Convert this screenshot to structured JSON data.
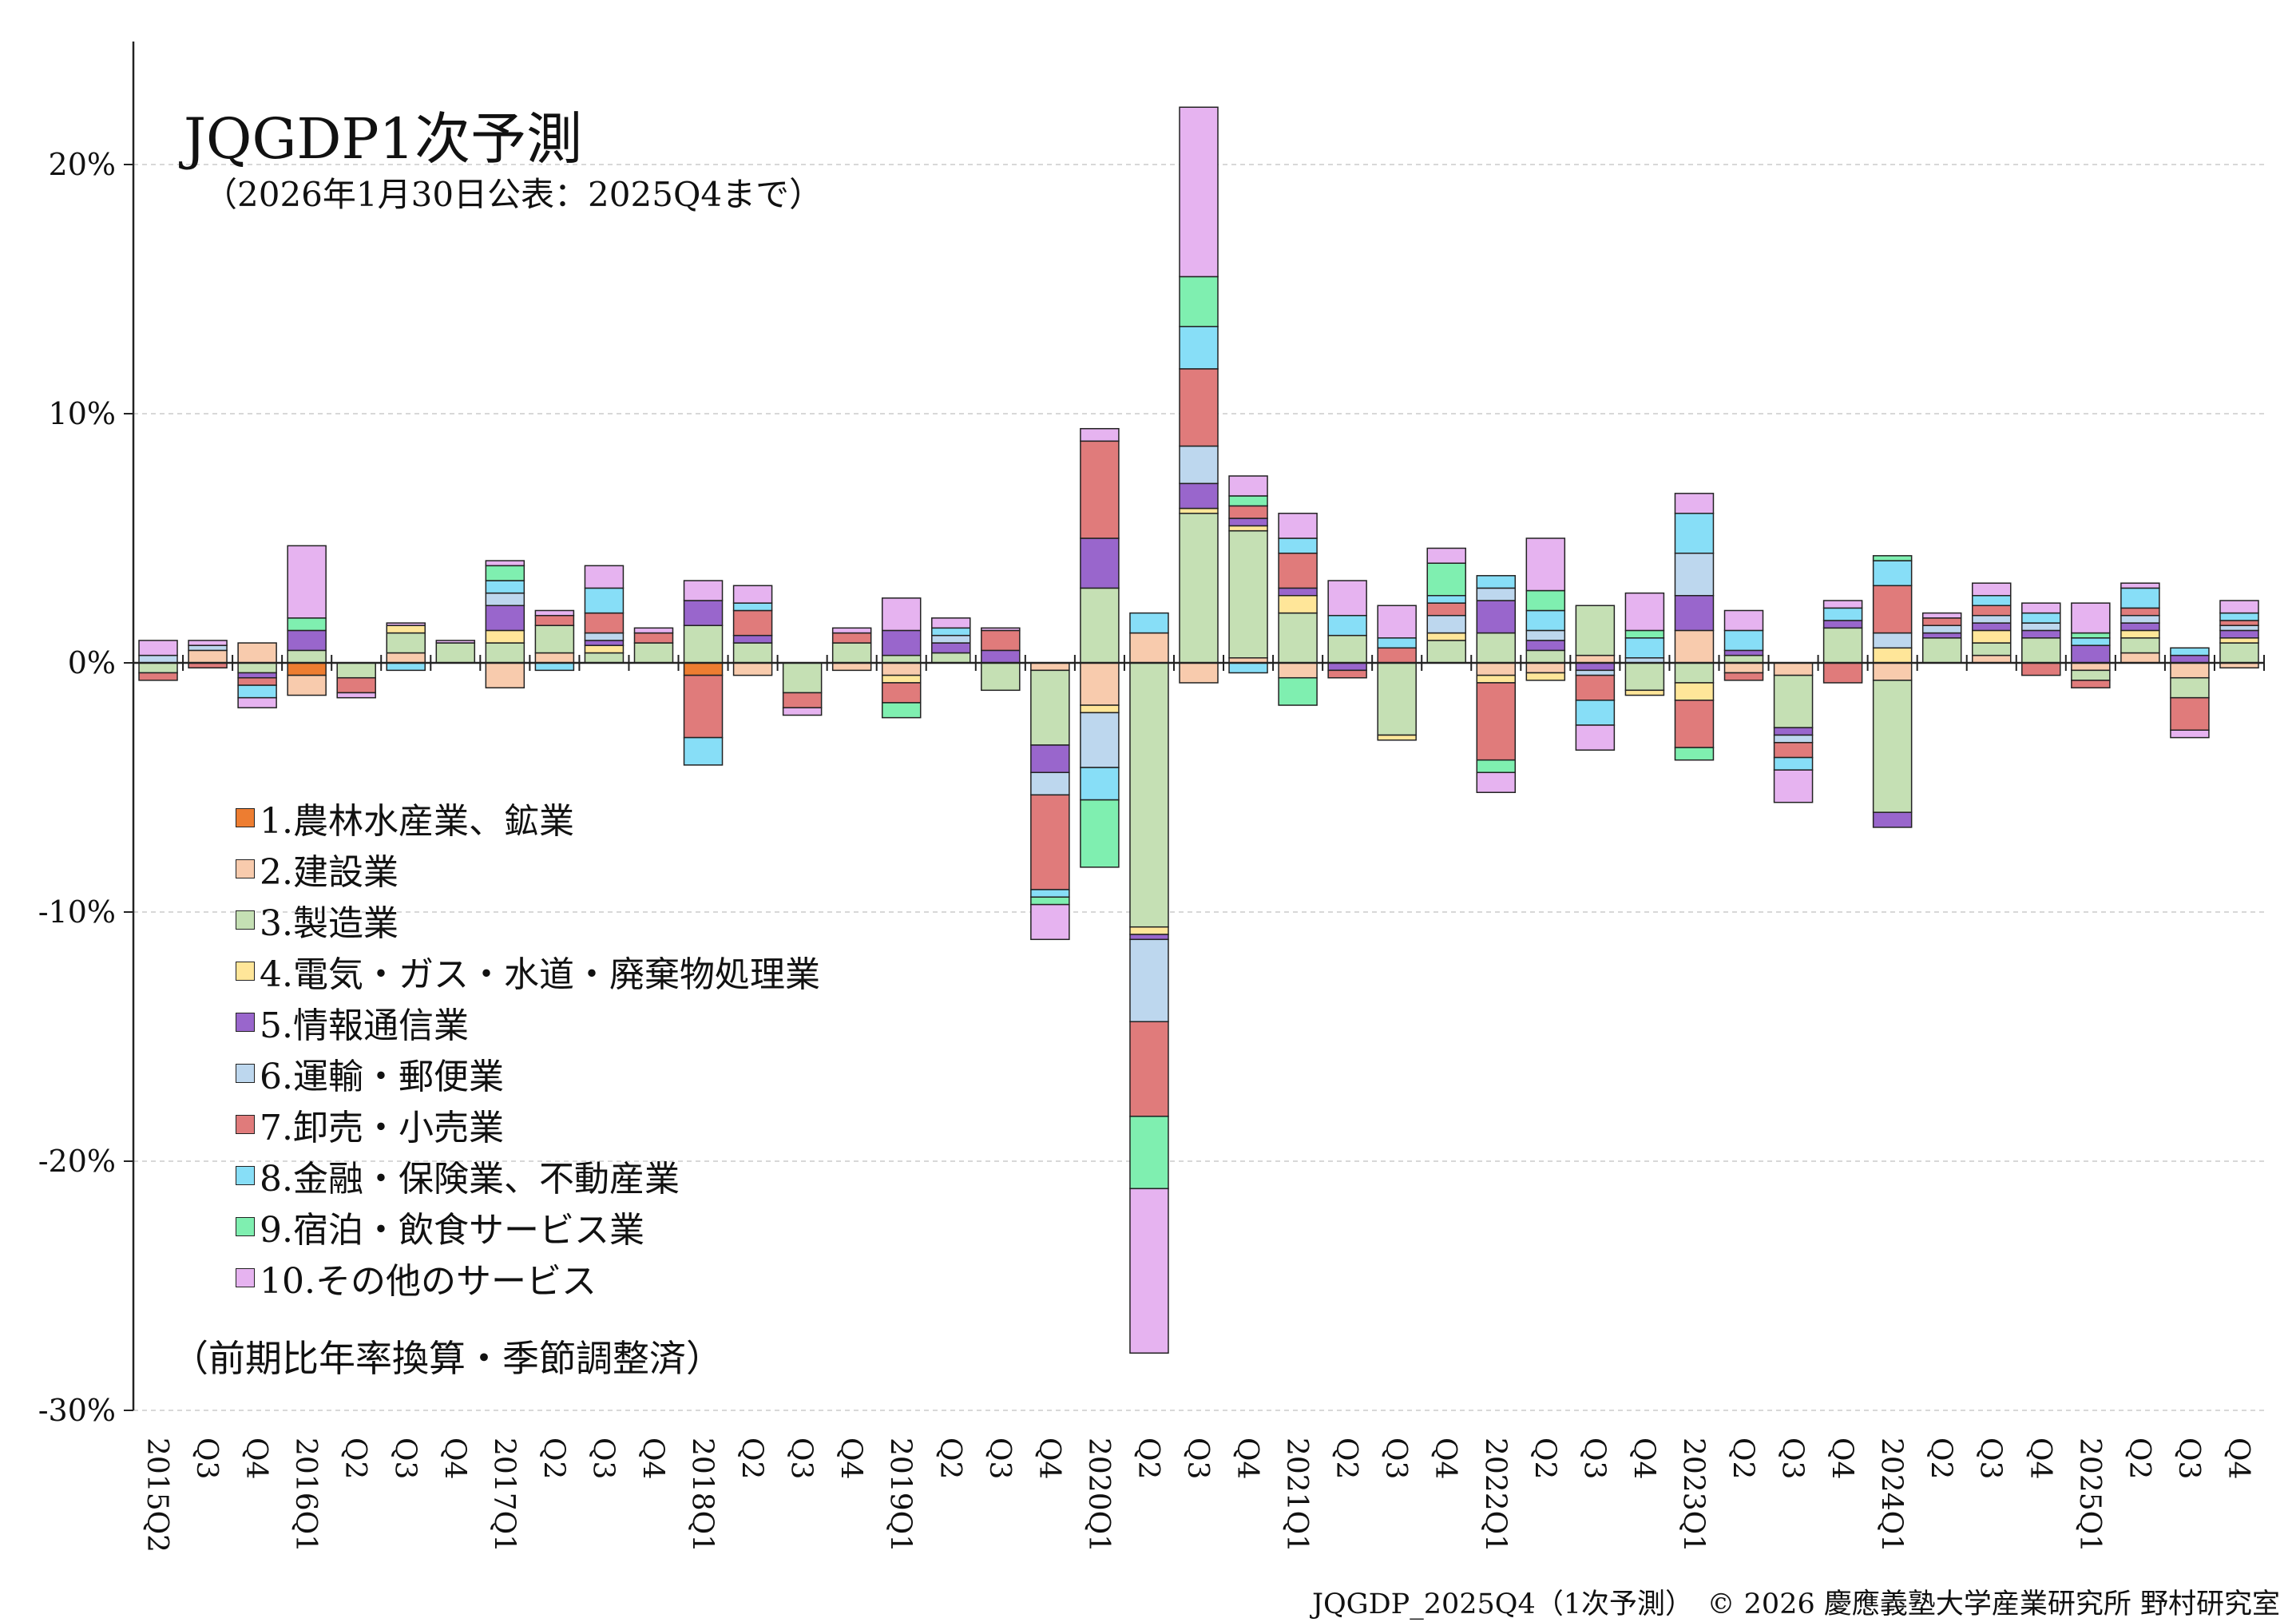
{
  "title": "JQGDP1次予測",
  "subtitle": "（2026年1月30日公表：2025Q4まで）",
  "note": "（前期比年率換算・季節調整済）",
  "footer": "JQGDP_2025Q4（1次予測）　© 2026 慶應義塾大学産業研究所 野村研究室",
  "chart_data": {
    "type": "bar",
    "stacked": true,
    "ylim": [
      -30,
      25
    ],
    "yticks": [
      20,
      10,
      0,
      -10,
      -20,
      -30
    ],
    "ytick_labels": [
      "20%",
      "10%",
      "0%",
      "-10%",
      "-20%",
      "-30%"
    ],
    "grid": "horizontal-dashed",
    "legend_position": "left-middle",
    "categories": [
      "2015Q2",
      "Q3",
      "Q4",
      "2016Q1",
      "Q2",
      "Q3",
      "Q4",
      "2017Q1",
      "Q2",
      "Q3",
      "Q4",
      "2018Q1",
      "Q2",
      "Q3",
      "Q4",
      "2019Q1",
      "Q2",
      "Q3",
      "Q4",
      "2020Q1",
      "Q2",
      "Q3",
      "Q4",
      "2021Q1",
      "Q2",
      "Q3",
      "Q4",
      "2022Q1",
      "Q2",
      "Q3",
      "Q4",
      "2023Q1",
      "Q2",
      "Q3",
      "Q4",
      "2024Q1",
      "Q2",
      "Q3",
      "Q4",
      "2025Q1",
      "Q2",
      "Q3",
      "Q4"
    ],
    "series": [
      {
        "name": "1.農林水産業、鉱業",
        "color": "#ED7D31",
        "values": [
          0,
          0,
          0,
          -0.5,
          0,
          0,
          0,
          0,
          0,
          0,
          0,
          -0.5,
          0,
          0,
          0,
          0,
          0,
          0,
          0,
          0,
          0,
          0,
          0,
          0,
          0,
          0,
          0,
          0,
          0,
          0,
          0,
          0,
          0,
          0,
          0,
          0,
          0,
          0,
          0,
          0,
          0,
          0,
          0
        ]
      },
      {
        "name": "2.建設業",
        "color": "#F8CBAD",
        "values": [
          0,
          0.5,
          0.8,
          -0.8,
          0,
          0.4,
          0,
          -1,
          0.4,
          0,
          0,
          0,
          -0.5,
          0,
          -0.3,
          -0.5,
          0,
          0,
          -0.3,
          -1.7,
          1.2,
          -0.8,
          0.2,
          -0.6,
          0,
          0,
          0,
          -0.5,
          -0.4,
          0.3,
          0,
          1.3,
          -0.4,
          -0.5,
          0,
          -0.7,
          0,
          0.3,
          0,
          -0.3,
          0.4,
          -0.6,
          -0.2
        ]
      },
      {
        "name": "3.製造業",
        "color": "#C5E0B4",
        "values": [
          -0.4,
          0,
          -0.4,
          0.5,
          -0.6,
          0.8,
          0.8,
          0.8,
          1.1,
          0.4,
          0.8,
          1.5,
          0.8,
          -1.2,
          0.8,
          0.3,
          0.4,
          -1.1,
          -3,
          3,
          -10.6,
          6,
          5.1,
          2,
          1.1,
          -2.9,
          0.9,
          1.2,
          0.5,
          2,
          -1.1,
          -0.8,
          0.3,
          -2.1,
          1.4,
          -5.3,
          1,
          0.5,
          1,
          -0.4,
          0.6,
          -0.8,
          0.8
        ]
      },
      {
        "name": "4.電気・ガス・水道・廃棄物処理業",
        "color": "#FFE699",
        "values": [
          0,
          0,
          0,
          0,
          0,
          0.3,
          0,
          0.5,
          0,
          0.3,
          0,
          0,
          0,
          0,
          0,
          -0.3,
          0,
          0,
          0,
          -0.3,
          -0.3,
          0.2,
          0.2,
          0.7,
          0,
          -0.2,
          0.3,
          -0.3,
          -0.3,
          0,
          -0.2,
          -0.7,
          0,
          0,
          0,
          0.6,
          0,
          0.5,
          0,
          0,
          0.3,
          0,
          0.2
        ]
      },
      {
        "name": "5.情報通信業",
        "color": "#9966CC",
        "values": [
          0,
          0,
          -0.2,
          0.8,
          0,
          0,
          0,
          1,
          0,
          0.2,
          0,
          1,
          0.3,
          0,
          0,
          1,
          0.4,
          0.5,
          -1.1,
          2,
          -0.2,
          1,
          0.3,
          0.3,
          -0.3,
          0,
          0,
          1.3,
          0.4,
          -0.3,
          0,
          1.4,
          0.2,
          -0.3,
          0.3,
          -0.6,
          0.2,
          0.3,
          0.3,
          0.7,
          0.3,
          0.3,
          0.3
        ]
      },
      {
        "name": "6.運輸・郵便業",
        "color": "#BDD7EE",
        "values": [
          0.3,
          0.2,
          0,
          0,
          0,
          0,
          0,
          0.5,
          0,
          0.3,
          0,
          0,
          0,
          0,
          0,
          0,
          0.3,
          0,
          -0.9,
          -2.2,
          -3.3,
          1.5,
          0,
          0,
          0,
          0,
          0.7,
          0.5,
          0.4,
          -0.2,
          0.2,
          1.7,
          0,
          -0.3,
          0,
          0.6,
          0.3,
          0.3,
          0.3,
          0,
          0.3,
          0,
          0.2
        ]
      },
      {
        "name": "7.卸売・小売業",
        "color": "#E07B7B",
        "values": [
          -0.3,
          -0.2,
          -0.3,
          0,
          -0.6,
          0,
          0,
          0,
          0.4,
          0.8,
          0.4,
          -2.5,
          1,
          -0.6,
          0.4,
          -0.8,
          0,
          0.8,
          -3.8,
          3.9,
          -3.8,
          3.1,
          0.5,
          1.4,
          -0.3,
          0.6,
          0.5,
          -3.1,
          0,
          -1,
          0,
          -1.9,
          -0.3,
          -0.6,
          -0.8,
          1.9,
          0.3,
          0.4,
          -0.5,
          -0.3,
          0.3,
          -1.3,
          0.2
        ]
      },
      {
        "name": "8.金融・保険業、不動産業",
        "color": "#87DEF7",
        "values": [
          0,
          0,
          -0.5,
          0,
          0,
          -0.3,
          0,
          0.5,
          -0.3,
          1,
          0,
          -1.1,
          0.3,
          0,
          0,
          0,
          0.3,
          0,
          -0.3,
          -1.3,
          0.8,
          1.7,
          -0.4,
          0.6,
          0.8,
          0.4,
          0.3,
          0.5,
          0.8,
          -1,
          0.8,
          1.6,
          0.8,
          -0.5,
          0.5,
          1,
          0,
          0.4,
          0.4,
          0.3,
          0.8,
          0.3,
          0.3
        ]
      },
      {
        "name": "9.宿泊・飲食サービス業",
        "color": "#7FEFB0",
        "values": [
          0,
          0,
          0,
          0.5,
          0,
          0,
          0,
          0.6,
          0,
          0,
          0,
          0,
          0,
          0,
          0,
          -0.6,
          0,
          0,
          -0.3,
          -2.7,
          -2.9,
          2,
          0.4,
          -1.1,
          0,
          0,
          1.3,
          -0.5,
          0.8,
          0,
          0.3,
          -0.5,
          0,
          0,
          0,
          0.2,
          0,
          0,
          0,
          0.2,
          0,
          0,
          0
        ]
      },
      {
        "name": "10.その他のサービス",
        "color": "#E6B3F0",
        "values": [
          0.6,
          0.2,
          -0.4,
          2.9,
          -0.2,
          0.1,
          0.1,
          0.2,
          0.2,
          0.9,
          0.2,
          0.8,
          0.7,
          -0.3,
          0.2,
          1.3,
          0.4,
          0.1,
          -1.4,
          0.5,
          -6.6,
          6.8,
          0.8,
          1,
          1.4,
          1.3,
          0.6,
          -0.8,
          2.1,
          -1,
          1.5,
          0.8,
          0.8,
          -1.3,
          0.3,
          0,
          0.2,
          0.5,
          0.4,
          1.2,
          0.2,
          -0.3,
          0.5
        ]
      }
    ]
  }
}
